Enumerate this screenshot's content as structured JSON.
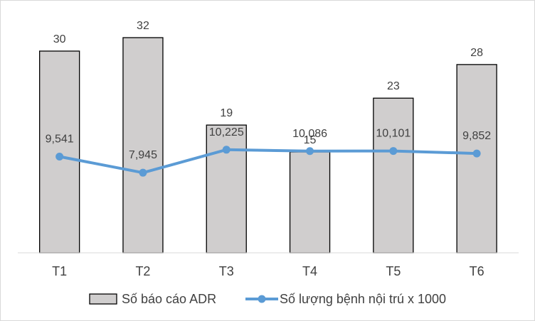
{
  "chart_data": {
    "type": "bar",
    "title": "",
    "xlabel": "",
    "ylabel": "",
    "categories": [
      "T1",
      "T2",
      "T3",
      "T4",
      "T5",
      "T6"
    ],
    "series": [
      {
        "name": "Số báo cáo ADR",
        "type": "bar",
        "values": [
          30,
          32,
          19,
          15,
          23,
          28
        ],
        "labels": [
          "30",
          "32",
          "19",
          "15",
          "23",
          "28"
        ],
        "color": "#d0cece"
      },
      {
        "name": "Số lượng bệnh nội trú x 1000",
        "type": "line",
        "values": [
          9541,
          7945,
          10225,
          10086,
          10101,
          9852
        ],
        "labels": [
          "9,541",
          "7,945",
          "10,225",
          "10,086",
          "10,101",
          "9,852"
        ],
        "color": "#5b9bd5"
      }
    ],
    "ylim": [
      0,
      32
    ],
    "ylim_secondary": [
      0,
      25000
    ],
    "grid": false,
    "legend": "bottom"
  }
}
